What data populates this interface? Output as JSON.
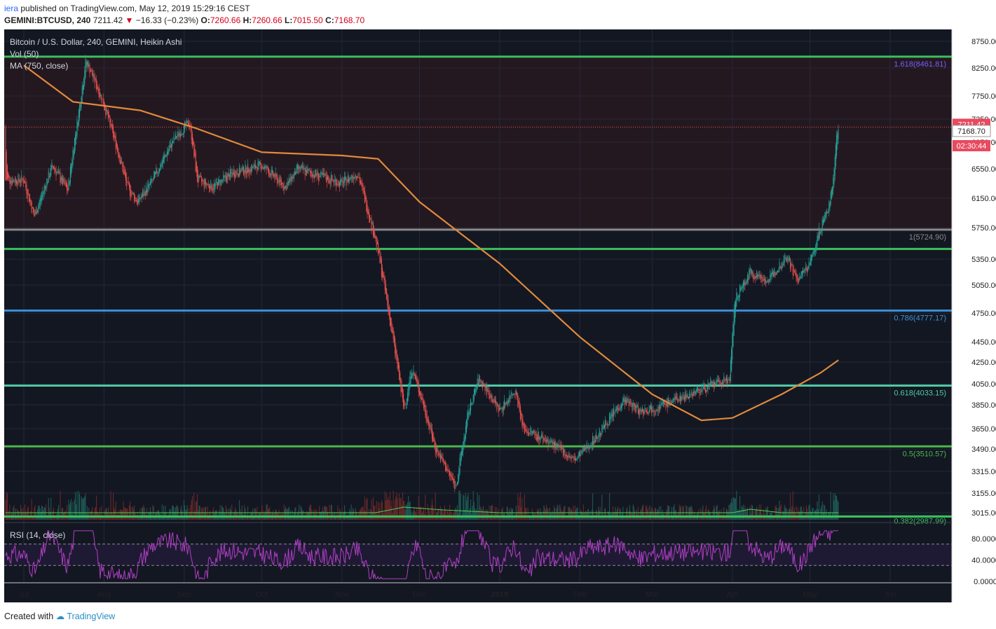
{
  "header": {
    "publisher": "iera",
    "published_text": "published on TradingView.com, May 12, 2019 15:29:16 CEST",
    "symbol": "GEMINI:BTCUSD, 240",
    "last": "7211.42",
    "change": "−16.33 (−0.23%)",
    "o_label": "O:",
    "o_value": "7260.66",
    "h_label": "H:",
    "h_value": "7260.66",
    "l_label": "L:",
    "l_value": "7015.50",
    "c_label": "C:",
    "c_value": "7168.70"
  },
  "legend": {
    "title": "Bitcoin / U.S. Dollar, 240, GEMINI, Heikin Ashi",
    "vol": "Vol (50)",
    "ma": "MA (750, close)",
    "rsi": "RSI (14, close)"
  },
  "footer": {
    "created_with": "Created with",
    "brand": "TradingView"
  },
  "price_tags": [
    {
      "text": "7211.42",
      "value": 7211.42,
      "color": "#e84a5f"
    },
    {
      "text": "7168.70",
      "value": 7168.7,
      "color": "#ffffff"
    },
    {
      "text": "02:30:44",
      "value": 6950,
      "color": "#e84a5f"
    }
  ],
  "colors": {
    "background": "#131722",
    "upper_zone": "#241820",
    "up": "#26a69a",
    "down": "#ef5350",
    "ma": "#e08a3c",
    "rsi": "#b03fc6",
    "fib_1618": "#7b5cff",
    "fib_1": "#8a8a8a",
    "fib_0786": "#3c8fd8",
    "fib_0618": "#4ec9a4",
    "fib_05": "#4cb64c",
    "green_line": "#3bbf5e"
  },
  "chart_data": {
    "type": "candlestick",
    "title": "Bitcoin / U.S. Dollar, 240, GEMINI, Heikin Ashi",
    "price_axis_ticks": [
      8750,
      8250,
      7750,
      7350,
      6950,
      6550,
      6150,
      5750,
      5350,
      5050,
      4750,
      4450,
      4250,
      4050,
      3850,
      3650,
      3490,
      3315,
      3155,
      3015
    ],
    "price_axis_labels": [
      "8750.00",
      "8250.00",
      "7750.00",
      "7350.00",
      "6950.00",
      "6550.00",
      "6150.00",
      "5750.00",
      "5350.00",
      "5050.00",
      "4750.00",
      "4450.00",
      "4250.00",
      "4050.00",
      "3850.00",
      "3650.00",
      "3490.00",
      "3315.00",
      "3155.00",
      "3015.00"
    ],
    "x_axis_labels": [
      "Jul",
      "Aug",
      "Sep",
      "Oct",
      "Nov",
      "Dec",
      "2019",
      "Feb",
      "Mar",
      "Apr",
      "May",
      "Jun"
    ],
    "fib_levels": [
      {
        "label": "1.618(8461.81)",
        "value": 8461.81
      },
      {
        "label": "1(5724.90)",
        "value": 5724.9
      },
      {
        "label": "0.786(4777.17)",
        "value": 4777.17
      },
      {
        "label": "0.618(4033.15)",
        "value": 4033.15
      },
      {
        "label": "0.5(3510.57)",
        "value": 3510.57
      },
      {
        "label": "0.382(2987.99)",
        "value": 2987.99
      }
    ],
    "horizontal_lines": [
      5480,
      2987.99
    ],
    "price_path": [
      {
        "x": "Jul 1",
        "y": 6400
      },
      {
        "x": "Jul 5",
        "y": 5900
      },
      {
        "x": "Jul 12",
        "y": 6600
      },
      {
        "x": "Jul 18",
        "y": 6250
      },
      {
        "x": "Jul 22",
        "y": 7400
      },
      {
        "x": "Jul 25",
        "y": 8400
      },
      {
        "x": "Aug 1",
        "y": 7600
      },
      {
        "x": "Aug 5",
        "y": 7000
      },
      {
        "x": "Aug 10",
        "y": 6300
      },
      {
        "x": "Aug 14",
        "y": 6100
      },
      {
        "x": "Aug 20",
        "y": 6400
      },
      {
        "x": "Aug 28",
        "y": 7000
      },
      {
        "x": "Sep 3",
        "y": 7300
      },
      {
        "x": "Sep 6",
        "y": 6400
      },
      {
        "x": "Sep 12",
        "y": 6300
      },
      {
        "x": "Sep 20",
        "y": 6500
      },
      {
        "x": "Oct 1",
        "y": 6600
      },
      {
        "x": "Oct 10",
        "y": 6300
      },
      {
        "x": "Oct 15",
        "y": 6550
      },
      {
        "x": "Nov 1",
        "y": 6350
      },
      {
        "x": "Nov 7",
        "y": 6500
      },
      {
        "x": "Nov 14",
        "y": 5600
      },
      {
        "x": "Nov 20",
        "y": 4600
      },
      {
        "x": "Nov 25",
        "y": 3800
      },
      {
        "x": "Nov 28",
        "y": 4200
      },
      {
        "x": "Dec 7",
        "y": 3500
      },
      {
        "x": "Dec 15",
        "y": 3200
      },
      {
        "x": "Dec 20",
        "y": 3800
      },
      {
        "x": "Dec 24",
        "y": 4100
      },
      {
        "x": "Jan 1",
        "y": 3800
      },
      {
        "x": "Jan 7",
        "y": 4000
      },
      {
        "x": "Jan 10",
        "y": 3650
      },
      {
        "x": "Jan 20",
        "y": 3550
      },
      {
        "x": "Jan 30",
        "y": 3400
      },
      {
        "x": "Feb 8",
        "y": 3600
      },
      {
        "x": "Feb 18",
        "y": 3900
      },
      {
        "x": "Feb 24",
        "y": 3800
      },
      {
        "x": "Mar 5",
        "y": 3850
      },
      {
        "x": "Mar 15",
        "y": 3950
      },
      {
        "x": "Mar 31",
        "y": 4100
      },
      {
        "x": "Apr 2",
        "y": 4900
      },
      {
        "x": "Apr 8",
        "y": 5200
      },
      {
        "x": "Apr 15",
        "y": 5100
      },
      {
        "x": "Apr 22",
        "y": 5400
      },
      {
        "x": "Apr 26",
        "y": 5100
      },
      {
        "x": "May 1",
        "y": 5300
      },
      {
        "x": "May 5",
        "y": 5750
      },
      {
        "x": "May 8",
        "y": 6000
      },
      {
        "x": "May 10",
        "y": 6400
      },
      {
        "x": "May 11",
        "y": 7000
      },
      {
        "x": "May 12",
        "y": 7211.42
      }
    ],
    "ma_path": [
      {
        "x": "Jul 1",
        "y": 8300
      },
      {
        "x": "Jul 20",
        "y": 7650
      },
      {
        "x": "Aug 15",
        "y": 7500
      },
      {
        "x": "Sep 5",
        "y": 7200
      },
      {
        "x": "Oct 1",
        "y": 6800
      },
      {
        "x": "Nov 1",
        "y": 6750
      },
      {
        "x": "Nov 15",
        "y": 6700
      },
      {
        "x": "Dec 1",
        "y": 6100
      },
      {
        "x": "Jan 1",
        "y": 5300
      },
      {
        "x": "Feb 1",
        "y": 4500
      },
      {
        "x": "Mar 1",
        "y": 3950
      },
      {
        "x": "Mar 20",
        "y": 3720
      },
      {
        "x": "Apr 1",
        "y": 3740
      },
      {
        "x": "Apr 20",
        "y": 3950
      },
      {
        "x": "May 5",
        "y": 4150
      },
      {
        "x": "May 12",
        "y": 4270
      }
    ],
    "rsi": {
      "axis_labels": [
        "80.0000",
        "40.0000",
        "0.0000"
      ],
      "upper": 70,
      "lower": 30
    },
    "grid": true
  }
}
